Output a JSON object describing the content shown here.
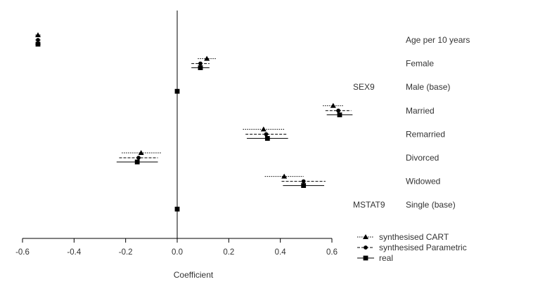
{
  "chart_data": {
    "type": "scatter",
    "title": "",
    "xlabel": "Coefficient",
    "ylabel": "",
    "xlim": [
      -0.6,
      0.6
    ],
    "x_ticks": [
      -0.6,
      -0.4,
      -0.2,
      0.0,
      0.2,
      0.4,
      0.6
    ],
    "x_tick_labels": [
      "-0.6",
      "-0.4",
      "-0.2",
      "0.0",
      "0.2",
      "0.4",
      "0.6"
    ],
    "grid": false,
    "reference_line_x": 0,
    "legend_position": "bottom-right",
    "categories": [
      "Age per 10 years",
      "Female",
      "Male (base)",
      "Married",
      "Remarried",
      "Divorced",
      "Widowed",
      "Single (base)"
    ],
    "group_labels": [
      {
        "label": "SEX9",
        "category": "Male (base)"
      },
      {
        "label": "MSTAT9",
        "category": "Single (base)"
      }
    ],
    "series": [
      {
        "name": "synthesised CART",
        "marker": "triangle",
        "line_style": "dotted",
        "estimates": [
          -0.54,
          0.115,
          null,
          0.605,
          0.335,
          -0.14,
          0.415,
          null
        ],
        "ci_low": [
          -0.55,
          0.08,
          null,
          0.565,
          0.255,
          -0.215,
          0.34,
          null
        ],
        "ci_high": [
          -0.53,
          0.15,
          null,
          0.645,
          0.415,
          -0.06,
          0.49,
          null
        ]
      },
      {
        "name": "synthesised Parametric",
        "marker": "circle",
        "line_style": "dashed",
        "estimates": [
          -0.54,
          0.09,
          null,
          0.625,
          0.345,
          -0.15,
          0.49,
          null
        ],
        "ci_low": [
          -0.55,
          0.055,
          null,
          0.575,
          0.265,
          -0.225,
          0.405,
          null
        ],
        "ci_high": [
          -0.53,
          0.125,
          null,
          0.675,
          0.425,
          -0.075,
          0.575,
          null
        ]
      },
      {
        "name": "real",
        "marker": "square",
        "line_style": "solid",
        "estimates": [
          -0.54,
          0.09,
          0.0,
          0.63,
          0.35,
          -0.155,
          0.49,
          0.0
        ],
        "ci_low": [
          -0.55,
          0.055,
          null,
          0.58,
          0.27,
          -0.235,
          0.41,
          null
        ],
        "ci_high": [
          -0.53,
          0.125,
          null,
          0.68,
          0.43,
          -0.075,
          0.57,
          null
        ]
      }
    ]
  }
}
